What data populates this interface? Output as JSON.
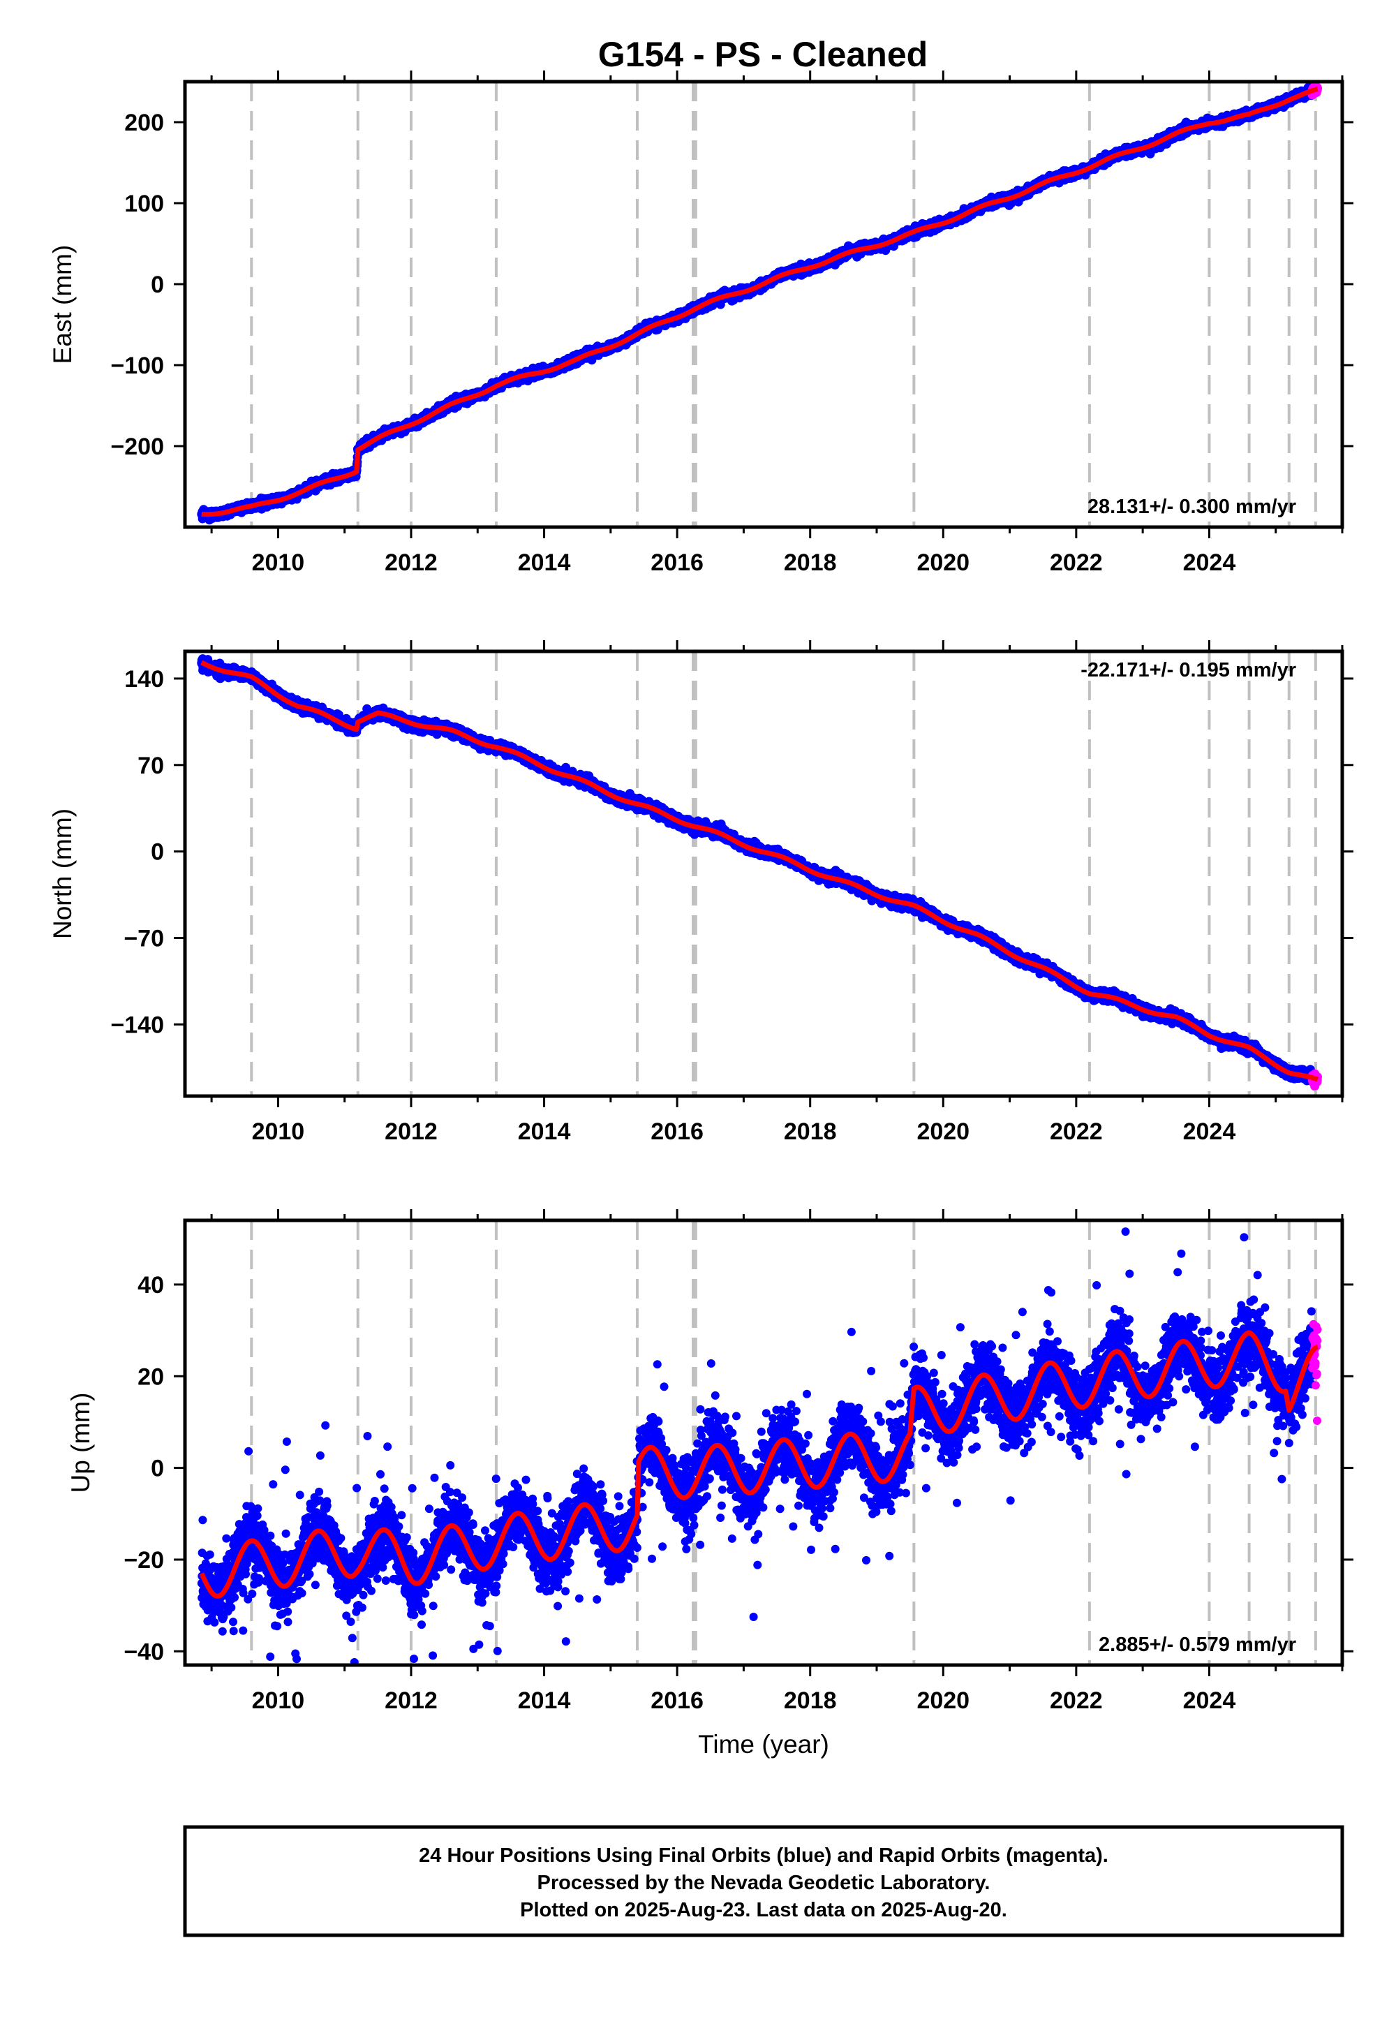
{
  "title": "G154  - PS - Cleaned",
  "footer": {
    "lines": [
      "24 Hour Positions Using Final Orbits (blue) and Rapid Orbits (magenta).",
      "Processed by the Nevada Geodetic Laboratory.",
      "Plotted on 2025-Aug-23. Last data on 2025-Aug-20."
    ]
  },
  "colors": {
    "final_orbits": "#0000ff",
    "rapid_orbits": "#ff00ff",
    "model": "#ff0000",
    "events": "#c0c0c0",
    "frame": "#000000"
  },
  "chart_data": [
    {
      "type": "scatter",
      "panel": "east",
      "ylabel": "East (mm)",
      "xlabel": "",
      "xlim": [
        2008.6,
        2026.0
      ],
      "ylim": [
        -300,
        250
      ],
      "xticks": [
        2010,
        2012,
        2014,
        2016,
        2018,
        2020,
        2022,
        2024
      ],
      "xtick_labels": [
        "2010",
        "2012",
        "2014",
        "2016",
        "2018",
        "2020",
        "2022",
        "2024"
      ],
      "yticks": [
        -200,
        -100,
        0,
        100,
        200
      ],
      "ytick_labels": [
        "−200",
        "−100",
        "0",
        "100",
        "200"
      ],
      "event_lines": [
        2009.6,
        2011.2,
        2012.0,
        2013.28,
        2015.4,
        2016.24,
        2016.28,
        2019.56,
        2022.2,
        2024.0,
        2024.6,
        2025.2,
        2025.6
      ],
      "rate_label": "28.131+/- 0.300 mm/yr",
      "rate_position": "bottom-right",
      "start_year": 2008.85,
      "end_year": 2025.63,
      "rapid_start_year": 2025.55,
      "model_knots": [
        [
          2008.85,
          -284
        ],
        [
          2009.6,
          -276
        ],
        [
          2010.4,
          -255
        ],
        [
          2011.18,
          -230
        ],
        [
          2011.2,
          -203
        ],
        [
          2012.0,
          -172
        ],
        [
          2013.28,
          -125
        ],
        [
          2014.5,
          -94
        ],
        [
          2015.4,
          -62
        ],
        [
          2016.26,
          -30
        ],
        [
          2017.0,
          -8
        ],
        [
          2018.0,
          22
        ],
        [
          2019.56,
          63
        ],
        [
          2020.5,
          92
        ],
        [
          2022.2,
          145
        ],
        [
          2024.0,
          200
        ],
        [
          2024.6,
          208
        ],
        [
          2025.2,
          229
        ],
        [
          2025.63,
          239
        ]
      ],
      "seasonal_amp": 2.0,
      "noise": 2.5,
      "outlier_rate": 0.0,
      "outlier_spread": 0
    },
    {
      "type": "scatter",
      "panel": "north",
      "ylabel": "North (mm)",
      "xlabel": "",
      "xlim": [
        2008.6,
        2026.0
      ],
      "ylim": [
        -198,
        162
      ],
      "xticks": [
        2010,
        2012,
        2014,
        2016,
        2018,
        2020,
        2022,
        2024
      ],
      "xtick_labels": [
        "2010",
        "2012",
        "2014",
        "2016",
        "2018",
        "2020",
        "2022",
        "2024"
      ],
      "yticks": [
        -140,
        -70,
        0,
        70,
        140
      ],
      "ytick_labels": [
        "−140",
        "−70",
        "0",
        "70",
        "140"
      ],
      "event_lines": [
        2009.6,
        2011.2,
        2012.0,
        2013.28,
        2015.4,
        2016.24,
        2016.28,
        2019.56,
        2022.2,
        2024.0,
        2024.6,
        2025.2,
        2025.6
      ],
      "rate_label": "-22.171+/- 0.195 mm/yr",
      "rate_position": "top-right",
      "start_year": 2008.85,
      "end_year": 2025.63,
      "rapid_start_year": 2025.55,
      "model_knots": [
        [
          2008.85,
          153
        ],
        [
          2009.6,
          140
        ],
        [
          2010.3,
          118
        ],
        [
          2011.18,
          100
        ],
        [
          2011.2,
          106
        ],
        [
          2011.5,
          111
        ],
        [
          2012.0,
          105
        ],
        [
          2012.6,
          97
        ],
        [
          2013.28,
          85
        ],
        [
          2014.5,
          58
        ],
        [
          2015.4,
          38
        ],
        [
          2016.26,
          21
        ],
        [
          2017.3,
          0
        ],
        [
          2018.5,
          -25
        ],
        [
          2019.56,
          -45
        ],
        [
          2020.5,
          -68
        ],
        [
          2022.2,
          -114
        ],
        [
          2023.5,
          -135
        ],
        [
          2024.0,
          -148
        ],
        [
          2024.6,
          -160
        ],
        [
          2025.2,
          -178
        ],
        [
          2025.63,
          -186
        ]
      ],
      "seasonal_amp": 1.5,
      "noise": 2.0,
      "outlier_rate": 0.0,
      "outlier_spread": 0
    },
    {
      "type": "scatter",
      "panel": "up",
      "ylabel": "Up (mm)",
      "xlabel": "Time (year)",
      "xlim": [
        2008.6,
        2026.0
      ],
      "ylim": [
        -43,
        54
      ],
      "xticks": [
        2010,
        2012,
        2014,
        2016,
        2018,
        2020,
        2022,
        2024
      ],
      "xtick_labels": [
        "2010",
        "2012",
        "2014",
        "2016",
        "2018",
        "2020",
        "2022",
        "2024"
      ],
      "yticks": [
        -40,
        -20,
        0,
        20,
        40
      ],
      "ytick_labels": [
        "−40",
        "−20",
        "0",
        "20",
        "40"
      ],
      "event_lines": [
        2009.6,
        2011.2,
        2012.0,
        2013.28,
        2015.4,
        2016.24,
        2016.28,
        2019.56,
        2022.2,
        2024.0,
        2024.6,
        2025.2,
        2025.6
      ],
      "rate_label": "2.885+/- 0.579 mm/yr",
      "rate_position": "bottom-right",
      "start_year": 2008.85,
      "end_year": 2025.63,
      "rapid_start_year": 2025.55,
      "model_knots": [
        [
          2008.85,
          -23
        ],
        [
          2011.18,
          -18
        ],
        [
          2011.2,
          -18
        ],
        [
          2012.0,
          -20
        ],
        [
          2013.28,
          -16
        ],
        [
          2015.4,
          -12
        ],
        [
          2015.42,
          -1
        ],
        [
          2016.26,
          -1
        ],
        [
          2019.5,
          3
        ],
        [
          2019.56,
          12
        ],
        [
          2022.2,
          19
        ],
        [
          2024.0,
          23
        ],
        [
          2024.6,
          24
        ],
        [
          2025.15,
          22
        ],
        [
          2025.2,
          17
        ],
        [
          2025.63,
          21
        ]
      ],
      "seasonal_amp": 5.5,
      "noise": 3.5,
      "outlier_rate": 0.05,
      "outlier_spread": 12
    }
  ]
}
